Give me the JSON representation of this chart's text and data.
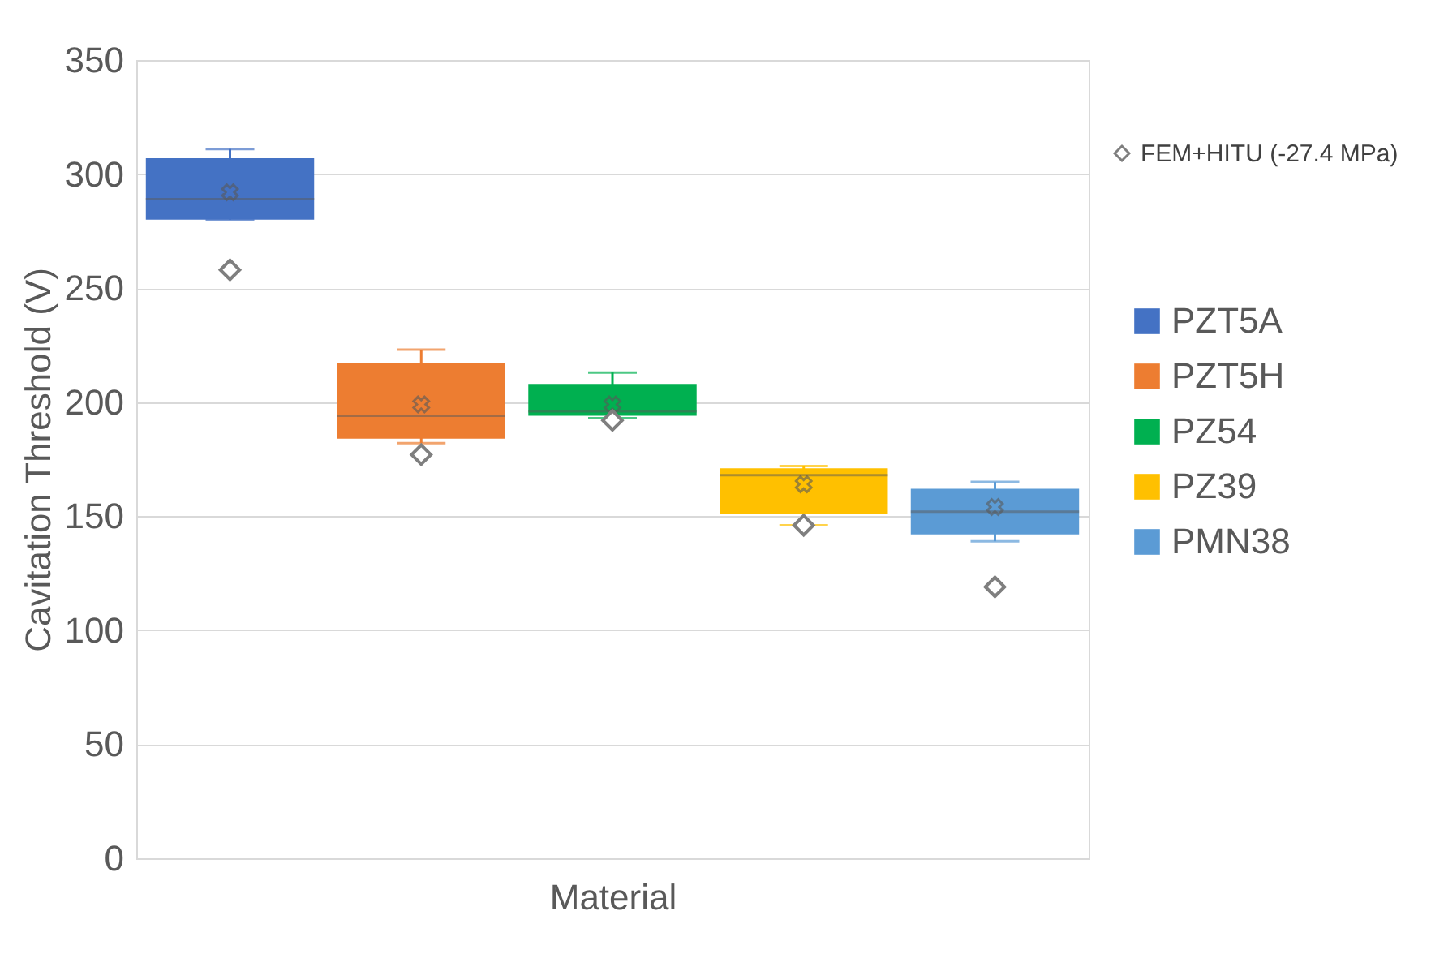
{
  "chart_data": {
    "type": "box",
    "xlabel": "Material",
    "ylabel": "Cavitation Threshold (V)",
    "categories": [
      null,
      null,
      null,
      null,
      null
    ],
    "ylim": [
      0,
      350
    ],
    "yticks": [
      0,
      50,
      100,
      150,
      200,
      250,
      300,
      350
    ],
    "grid": "y",
    "legend": "right",
    "series": [
      {
        "name": "FEM+HITU (-27.4 MPa)",
        "type": "scatter",
        "marker": "diamond",
        "color": "#7f7f7f",
        "values": [
          258,
          177,
          192,
          146,
          119
        ]
      },
      {
        "name": "PZT5A",
        "color": "#4472c4",
        "boxes": [
          {
            "low": 280,
            "q1": 280,
            "median": 289,
            "q3": 307,
            "high": 311,
            "mean": 292
          },
          null,
          null,
          null,
          null
        ]
      },
      {
        "name": "PZT5H",
        "color": "#ed7d31",
        "boxes": [
          null,
          {
            "low": 182,
            "q1": 184,
            "median": 194,
            "q3": 217,
            "high": 223,
            "mean": 199
          },
          null,
          null,
          null
        ]
      },
      {
        "name": "PZ54",
        "color": "#00b050",
        "boxes": [
          null,
          null,
          {
            "low": 193,
            "q1": 194,
            "median": 196,
            "q3": 208,
            "high": 213,
            "mean": 199
          },
          null,
          null
        ]
      },
      {
        "name": "PZ39",
        "color": "#ffc000",
        "boxes": [
          null,
          null,
          null,
          {
            "low": 146,
            "q1": 151,
            "median": 168,
            "q3": 171,
            "high": 172,
            "mean": 164
          },
          null
        ]
      },
      {
        "name": "PMN38",
        "color": "#5b9bd5",
        "boxes": [
          null,
          null,
          null,
          null,
          {
            "low": 139,
            "q1": 142,
            "median": 152,
            "q3": 162,
            "high": 165,
            "mean": 154
          }
        ]
      }
    ]
  }
}
